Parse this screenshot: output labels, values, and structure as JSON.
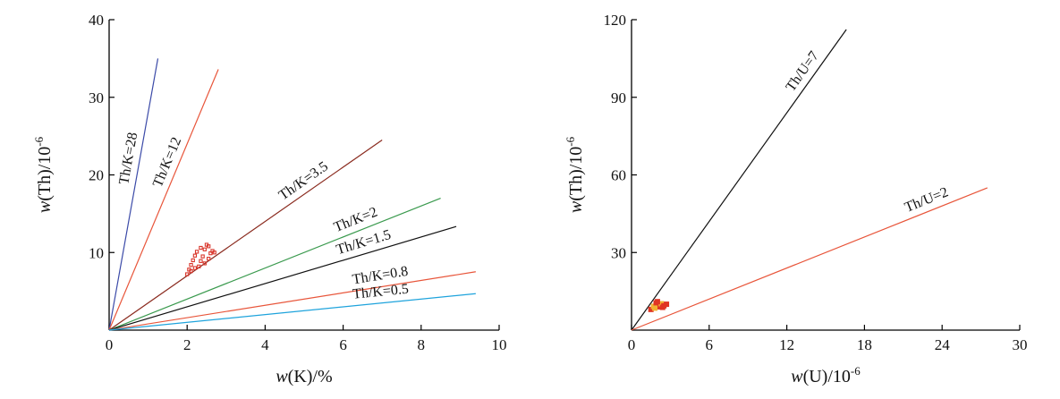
{
  "chart_data": [
    {
      "type": "scatter",
      "title": "",
      "xlabel_prefix": "w",
      "xlabel_rest": "(K)/%",
      "ylabel_prefix": "w",
      "ylabel_rest": "(Th)/10",
      "ylabel_exp": "-6",
      "xlim": [
        0,
        10
      ],
      "ylim": [
        0,
        40
      ],
      "xticks": [
        0,
        2,
        4,
        6,
        8,
        10
      ],
      "yticks": [
        10,
        20,
        30,
        40
      ],
      "ratio_lines": [
        {
          "label": "Th/K=28",
          "ratio": 28,
          "x_end": 1.25,
          "color": "#3b4aa8"
        },
        {
          "label": "Th/K=12",
          "ratio": 12,
          "x_end": 2.8,
          "color": "#e8553a"
        },
        {
          "label": "Th/K=3.5",
          "ratio": 3.5,
          "x_end": 7.0,
          "color": "#8a2a1e"
        },
        {
          "label": "Th/K=2",
          "ratio": 2,
          "x_end": 8.5,
          "color": "#3a9a4e"
        },
        {
          "label": "Th/K=1.5",
          "ratio": 1.5,
          "x_end": 8.9,
          "color": "#111111"
        },
        {
          "label": "Th/K=0.8",
          "ratio": 0.8,
          "x_end": 9.4,
          "color": "#e8553a"
        },
        {
          "label": "Th/K=0.5",
          "ratio": 0.5,
          "x_end": 9.4,
          "color": "#1ea3dc"
        }
      ],
      "points_color": "#d9362b",
      "points": [
        {
          "x": 2.0,
          "y": 7.2
        },
        {
          "x": 2.05,
          "y": 7.8
        },
        {
          "x": 2.1,
          "y": 8.4
        },
        {
          "x": 2.15,
          "y": 9.0
        },
        {
          "x": 2.2,
          "y": 9.6
        },
        {
          "x": 2.25,
          "y": 10.1
        },
        {
          "x": 2.3,
          "y": 8.2
        },
        {
          "x": 2.35,
          "y": 8.9
        },
        {
          "x": 2.4,
          "y": 9.5
        },
        {
          "x": 2.45,
          "y": 10.4
        },
        {
          "x": 2.5,
          "y": 11.0
        },
        {
          "x": 2.55,
          "y": 9.2
        },
        {
          "x": 2.6,
          "y": 9.9
        },
        {
          "x": 2.65,
          "y": 10.2
        },
        {
          "x": 2.7,
          "y": 10.0
        },
        {
          "x": 2.2,
          "y": 8.0
        },
        {
          "x": 2.35,
          "y": 10.6
        },
        {
          "x": 2.45,
          "y": 8.6
        },
        {
          "x": 2.55,
          "y": 10.8
        },
        {
          "x": 2.1,
          "y": 7.6
        }
      ]
    },
    {
      "type": "scatter",
      "title": "",
      "xlabel_prefix": "w",
      "xlabel_rest": "(U)/10",
      "xlabel_exp": "-6",
      "ylabel_prefix": "w",
      "ylabel_rest": "(Th)/10",
      "ylabel_exp": "-6",
      "xlim": [
        0,
        30
      ],
      "ylim": [
        0,
        120
      ],
      "xticks": [
        0,
        6,
        12,
        18,
        24,
        30
      ],
      "yticks": [
        30,
        60,
        90,
        120
      ],
      "ratio_lines": [
        {
          "label": "Th/U=7",
          "ratio": 7,
          "x_end": 16.6,
          "color": "#111111"
        },
        {
          "label": "Th/U=2",
          "ratio": 2,
          "x_end": 27.5,
          "color": "#e8553a"
        }
      ],
      "points_color": "#e03524",
      "points_accent_color": "#f2b233",
      "points": [
        {
          "x": 1.5,
          "y": 8.0
        },
        {
          "x": 1.7,
          "y": 9.2
        },
        {
          "x": 1.9,
          "y": 10.5
        },
        {
          "x": 2.1,
          "y": 9.0
        },
        {
          "x": 2.3,
          "y": 10.2
        },
        {
          "x": 2.5,
          "y": 9.4
        },
        {
          "x": 2.7,
          "y": 10.0
        },
        {
          "x": 1.8,
          "y": 8.5
        },
        {
          "x": 2.0,
          "y": 11.0
        },
        {
          "x": 2.4,
          "y": 8.8
        }
      ]
    }
  ]
}
